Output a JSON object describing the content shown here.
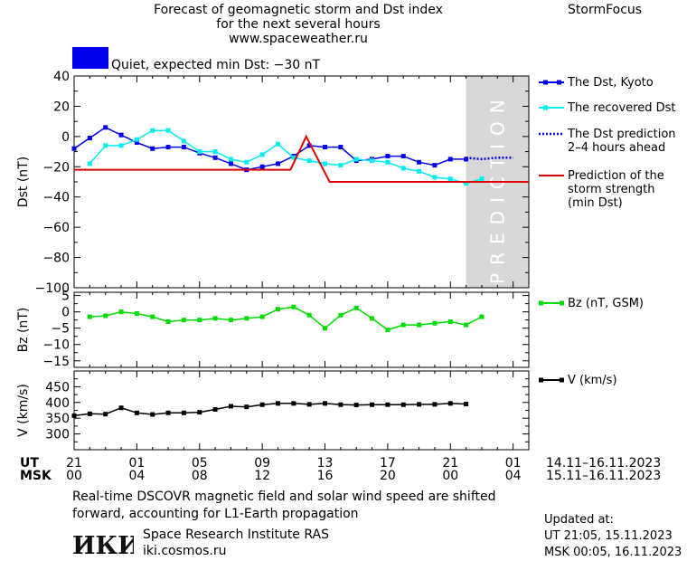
{
  "header": {
    "title_lines": [
      "Forecast of geomagnetic storm and Dst index",
      "for the next several hours",
      "www.spaceweather.ru"
    ],
    "brand": "StormFocus"
  },
  "status": {
    "text": "Quiet, expected min Dst: −30 nT",
    "color": "#0000ee"
  },
  "colors": {
    "dst_kyoto": "#0000ee",
    "dst_recovered": "#00eeee",
    "prediction_line": "#dd0000",
    "bz": "#00dd00",
    "v": "#000000",
    "prediction_band": "#d8d8d8"
  },
  "legend": {
    "dst_kyoto": [
      "The Dst, Kyoto"
    ],
    "dst_recovered": [
      "The recovered Dst"
    ],
    "dst_prediction": [
      "The Dst prediction",
      "2–4 hours ahead"
    ],
    "storm_strength": [
      "Prediction of the",
      "storm strength",
      "(min Dst)"
    ],
    "bz": [
      "Bz (nT, GSM)"
    ],
    "v": [
      "V (km/s)"
    ]
  },
  "prediction_label": "PREDICTION",
  "time_axis": {
    "ut_label": "UT",
    "msk_label": "MSK",
    "ut_ticks": [
      "21",
      "01",
      "05",
      "09",
      "13",
      "17",
      "21",
      "01"
    ],
    "msk_ticks": [
      "00",
      "04",
      "08",
      "12",
      "16",
      "20",
      "00",
      "04"
    ],
    "ut_range": "14.11–16.11.2023",
    "msk_range": "15.11–16.11.2023"
  },
  "chart_data": [
    {
      "type": "line",
      "ylabel": "Dst (nT)",
      "ylim": [
        -100,
        40
      ],
      "yticks": [
        "40",
        "20",
        "0",
        "−20",
        "−40",
        "−60",
        "−80",
        "−100"
      ],
      "x_unit": "hours (UT 21:00, 14.11.2023 = 0)",
      "xlim": [
        0,
        28
      ],
      "prediction_band": [
        25,
        29
      ],
      "series": [
        {
          "name": "The Dst, Kyoto",
          "x": [
            0,
            1,
            2,
            3,
            4,
            5,
            6,
            7,
            8,
            9,
            10,
            11,
            12,
            13,
            14,
            15,
            16,
            17,
            18,
            19,
            20,
            21,
            22,
            23,
            24,
            25
          ],
          "y": [
            -8,
            -1,
            6,
            1,
            -4,
            -8,
            -7,
            -7,
            -11,
            -14,
            -18,
            -22,
            -20,
            -18,
            -13,
            -6,
            -7,
            -7,
            -16,
            -15,
            -13,
            -13,
            -17,
            -19,
            -15,
            -15
          ]
        },
        {
          "name": "The recovered Dst",
          "x": [
            1,
            2,
            3,
            4,
            5,
            6,
            7,
            8,
            9,
            10,
            11,
            12,
            13,
            14,
            15,
            16,
            17,
            18,
            19,
            20,
            21,
            22,
            23,
            24,
            25,
            26
          ],
          "y": [
            -18,
            -6,
            -6,
            -2,
            4,
            4,
            -3,
            -10,
            -10,
            -15,
            -17,
            -12,
            -5,
            -14,
            -16,
            -18,
            -19,
            -15,
            -16,
            -17,
            -21,
            -23,
            -27,
            -28,
            -31,
            -28
          ]
        },
        {
          "name": "The Dst prediction",
          "x": [
            25,
            26,
            27,
            28
          ],
          "y": [
            -14,
            -15,
            -14,
            -14
          ]
        },
        {
          "name": "Prediction of the storm strength",
          "x": [
            0,
            13.8,
            14.8,
            16.3,
            29
          ],
          "y": [
            -22,
            -22,
            0,
            -30,
            -30
          ]
        }
      ]
    },
    {
      "type": "line",
      "ylabel": "Bz (nT)",
      "ylim": [
        -17,
        6
      ],
      "yticks": [
        "5",
        "0",
        "−5",
        "−10",
        "−15"
      ],
      "series": [
        {
          "name": "Bz (nT, GSM)",
          "x": [
            1,
            2,
            3,
            4,
            5,
            6,
            7,
            8,
            9,
            10,
            11,
            12,
            13,
            14,
            15,
            16,
            17,
            18,
            19,
            20,
            21,
            22,
            23,
            24,
            25,
            26
          ],
          "y": [
            -1.5,
            -1.2,
            0,
            -0.5,
            -1.5,
            -3,
            -2.5,
            -2.5,
            -2,
            -2.5,
            -2,
            -1.5,
            0.8,
            1.5,
            -1,
            -5,
            -1,
            1.2,
            -2,
            -5.5,
            -4,
            -4,
            -3.5,
            -3,
            -4,
            -1.5
          ]
        }
      ]
    },
    {
      "type": "line",
      "ylabel": "V (km/s)",
      "ylim": [
        250,
        500
      ],
      "yticks": [
        "450",
        "400",
        "350",
        "300"
      ],
      "series": [
        {
          "name": "V (km/s)",
          "x": [
            0,
            1,
            2,
            3,
            4,
            5,
            6,
            7,
            8,
            9,
            10,
            11,
            12,
            13,
            14,
            15,
            16,
            17,
            18,
            19,
            20,
            21,
            22,
            23,
            24,
            25
          ],
          "y": [
            358,
            364,
            363,
            383,
            367,
            362,
            367,
            367,
            369,
            378,
            388,
            386,
            393,
            397,
            397,
            394,
            397,
            393,
            392,
            393,
            393,
            393,
            394,
            394,
            397,
            395
          ]
        }
      ]
    }
  ],
  "footnote": [
    "Real-time DSCOVR magnetic field and solar wind speed are shifted",
    "forward, accounting for L1-Earth propagation"
  ],
  "institute": {
    "logo_text": "ИКИ",
    "name": "Space Research Institute RAS",
    "url": "iki.cosmos.ru"
  },
  "updated": {
    "label": "Updated at:",
    "ut": "UT   21:05, 15.11.2023",
    "msk": "MSK 00:05, 16.11.2023"
  }
}
